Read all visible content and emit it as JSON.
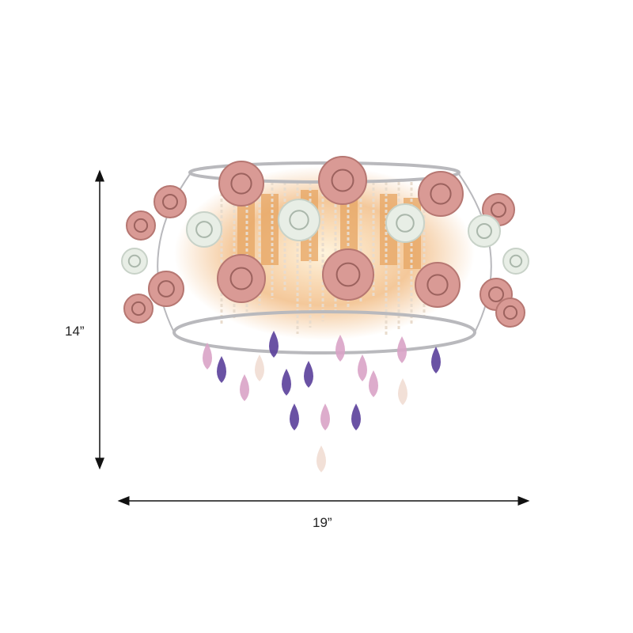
{
  "dimensions": {
    "height_label": "14”",
    "width_label": "19”"
  },
  "product": {
    "type": "crystal flush mount ceiling light with ceramic roses",
    "colors": {
      "rose_pink": "#d99a95",
      "rose_white": "#e8eee6",
      "crystal_purple": "#5a3f9a",
      "crystal_pink": "#d9a3c7",
      "metal_frame": "#b9b9bd",
      "glow": "#f4c89a"
    }
  }
}
